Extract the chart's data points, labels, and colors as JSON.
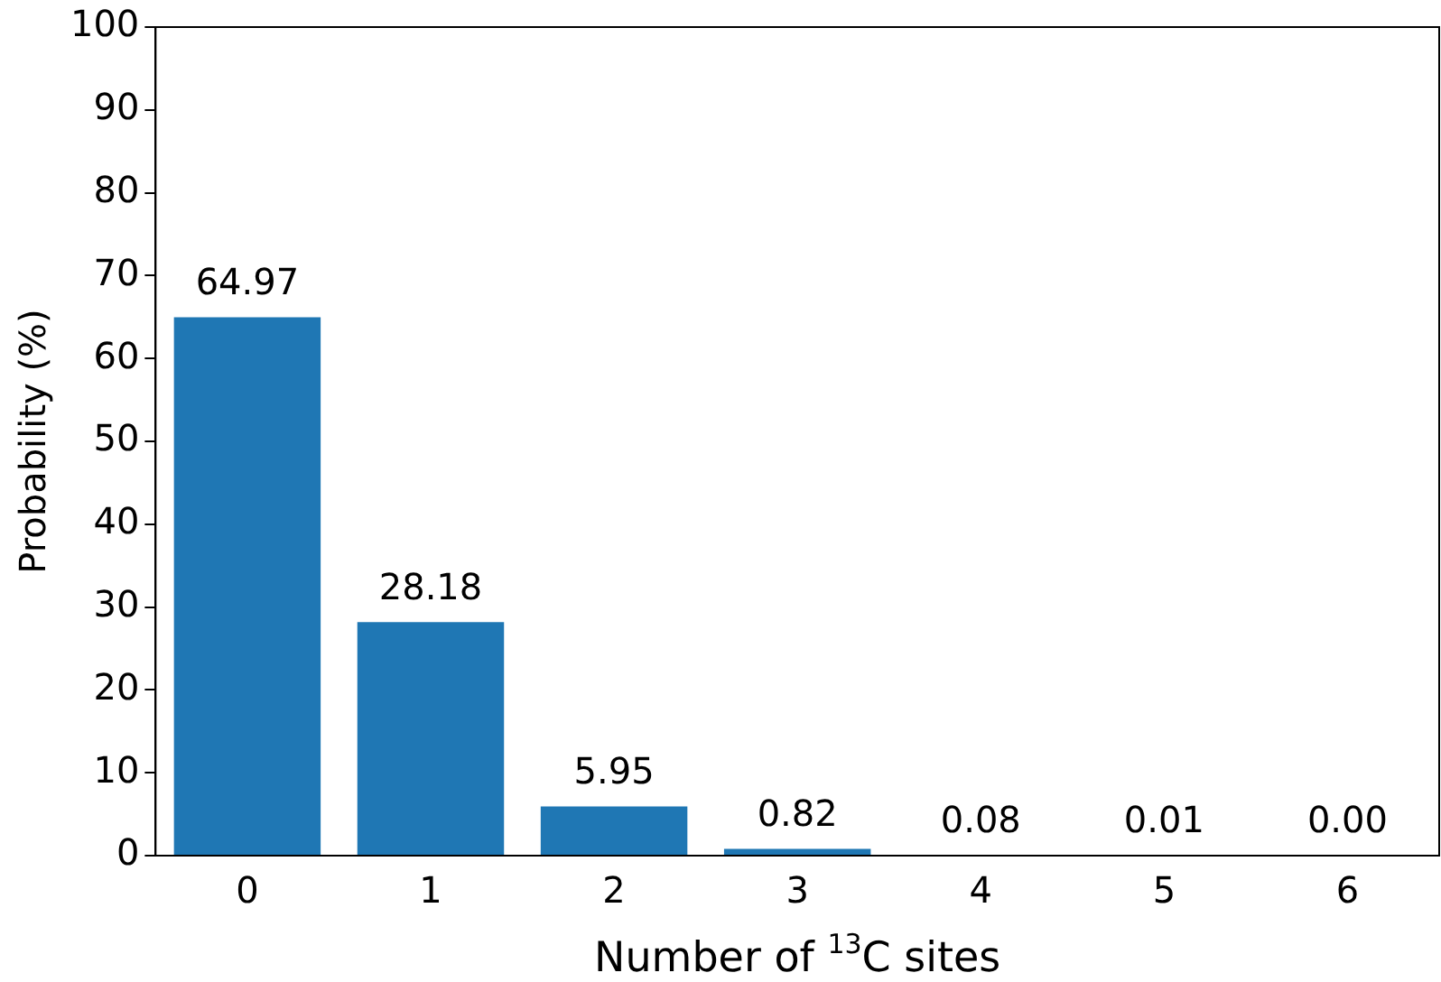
{
  "chart_data": {
    "type": "bar",
    "xlabel": "Number of $^{13}$C sites",
    "ylabel": "Probability (%)",
    "categories": [
      "0",
      "1",
      "2",
      "3",
      "4",
      "5",
      "6"
    ],
    "values": [
      64.97,
      28.18,
      5.95,
      0.82,
      0.08,
      0.01,
      0.0
    ],
    "value_labels": [
      "64.97",
      "28.18",
      "5.95",
      "0.82",
      "0.08",
      "0.01",
      "0.00"
    ],
    "color": "#1f77b4",
    "ylim": [
      0,
      100
    ],
    "yticks": [
      0,
      10,
      20,
      30,
      40,
      50,
      60,
      70,
      80,
      90,
      100
    ],
    "grid": false,
    "legend": false
  }
}
